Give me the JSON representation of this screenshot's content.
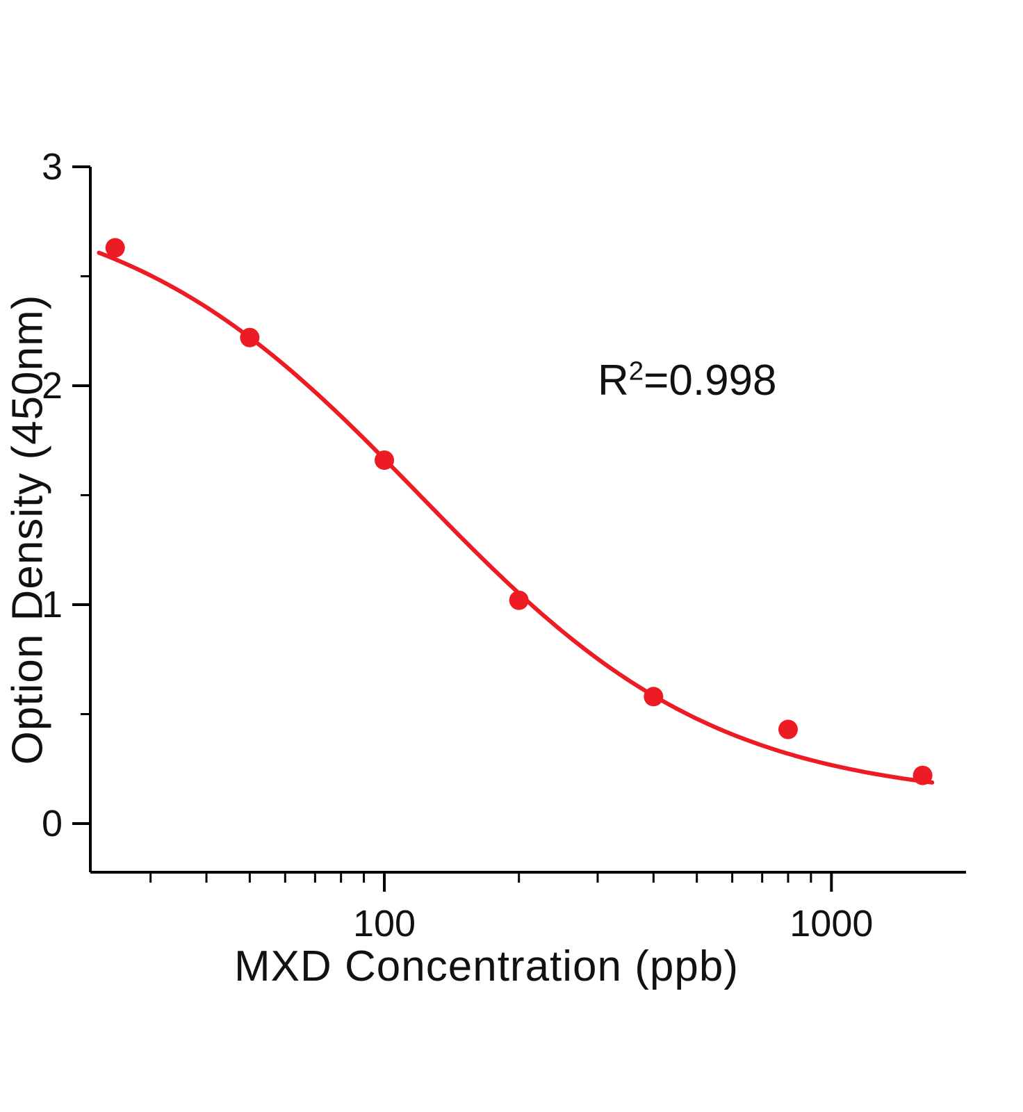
{
  "chart_data": {
    "type": "scatter",
    "title": "",
    "xlabel": "MXD Concentration (ppb)",
    "ylabel": "Option Density (450nm)",
    "x_scale": "log",
    "x_range": [
      22,
      2000
    ],
    "y_axis_min": -0.22,
    "y_axis_max": 3,
    "y_ticks": [
      0,
      1,
      2,
      3
    ],
    "y_minor_ticks": [
      0.5,
      1.5,
      2.5
    ],
    "x_major_ticks": [
      100,
      1000
    ],
    "x_major_tick_labels": [
      "100",
      "1000"
    ],
    "x_minor_ticks": [
      30,
      40,
      50,
      60,
      70,
      80,
      90,
      200,
      300,
      400,
      500,
      600,
      700,
      800,
      900
    ],
    "points": {
      "x": [
        25,
        50,
        100,
        200,
        400,
        800,
        1600
      ],
      "y": [
        2.63,
        2.22,
        1.66,
        1.02,
        0.58,
        0.43,
        0.22
      ]
    },
    "fit": {
      "model": "4PL",
      "top": 2.9,
      "bottom": 0.1,
      "ec50": 120,
      "hill": 1.3,
      "curve_x_start": 23,
      "curve_x_end": 1680
    },
    "annotation": {
      "base": "R",
      "exponent": "2",
      "rest": "=0.998"
    },
    "legend": null,
    "grid": false,
    "series_color": "#ed1c24",
    "axis_color": "#000000"
  }
}
